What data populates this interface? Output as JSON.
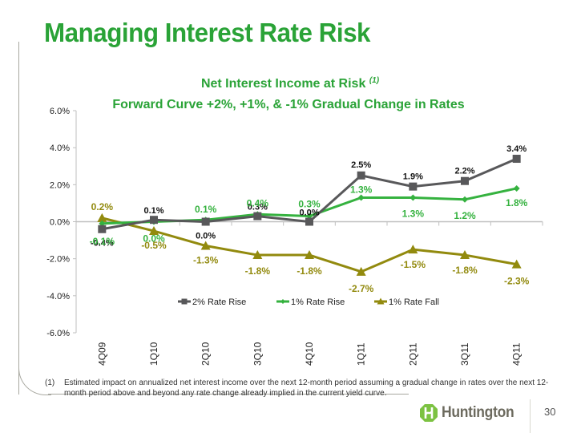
{
  "slide": {
    "title": "Managing Interest Rate Risk",
    "page_number": "30",
    "logo_text": "Huntington",
    "footnote_marker": "(1)",
    "footnote_text": "Estimated impact on annualized net interest income over the next 12-month period assuming a gradual change in rates over the next 12-month period above and beyond any rate change already implied in the current yield curve."
  },
  "chart_data": {
    "type": "line",
    "title": "Net Interest Income at Risk",
    "title_superscript": "(1)",
    "subtitle": "Forward Curve +2%, +1%, & -1% Gradual Change in Rates",
    "xlabel": "",
    "ylabel": "",
    "categories": [
      "4Q09",
      "1Q10",
      "2Q10",
      "3Q10",
      "4Q10",
      "1Q11",
      "2Q11",
      "3Q11",
      "4Q11"
    ],
    "ylim": [
      -6.0,
      6.0
    ],
    "yticks": [
      6.0,
      4.0,
      2.0,
      0.0,
      -2.0,
      -4.0,
      -6.0
    ],
    "ytick_labels": [
      "6.0%",
      "4.0%",
      "2.0%",
      "0.0%",
      "-2.0%",
      "-4.0%",
      "-6.0%"
    ],
    "grid": false,
    "legend_position": "bottom-center",
    "series": [
      {
        "name": "2% Rate Rise",
        "color": "#58585a",
        "marker": "square",
        "values": [
          -0.4,
          0.1,
          0.0,
          0.3,
          0.0,
          2.5,
          1.9,
          2.2,
          3.4
        ],
        "labels": [
          "-0.4%",
          "0.1%",
          "0.0%",
          "0.3%",
          "0.0%",
          "2.5%",
          "1.9%",
          "2.2%",
          "3.4%"
        ],
        "label_color": "#111111"
      },
      {
        "name": "1% Rate Rise",
        "color": "#35b23f",
        "marker": "diamond",
        "values": [
          -0.1,
          0.0,
          0.1,
          0.4,
          0.3,
          1.3,
          1.3,
          1.2,
          1.8
        ],
        "labels": [
          "-0.1%",
          "0.0%",
          "0.1%",
          "0.4%",
          "0.3%",
          "1.3%",
          "1.3%",
          "1.2%",
          "1.8%"
        ],
        "label_color": "#35b23f"
      },
      {
        "name": "1% Rate Fall",
        "color": "#928a0e",
        "marker": "triangle",
        "values": [
          0.2,
          -0.5,
          -1.3,
          -1.8,
          -1.8,
          -2.7,
          -1.5,
          -1.8,
          -2.3
        ],
        "labels": [
          "0.2%",
          "-0.5%",
          "-1.3%",
          "-1.8%",
          "-1.8%",
          "-2.7%",
          "-1.5%",
          "-1.8%",
          "-2.3%"
        ],
        "label_color": "#928a0e"
      }
    ]
  }
}
